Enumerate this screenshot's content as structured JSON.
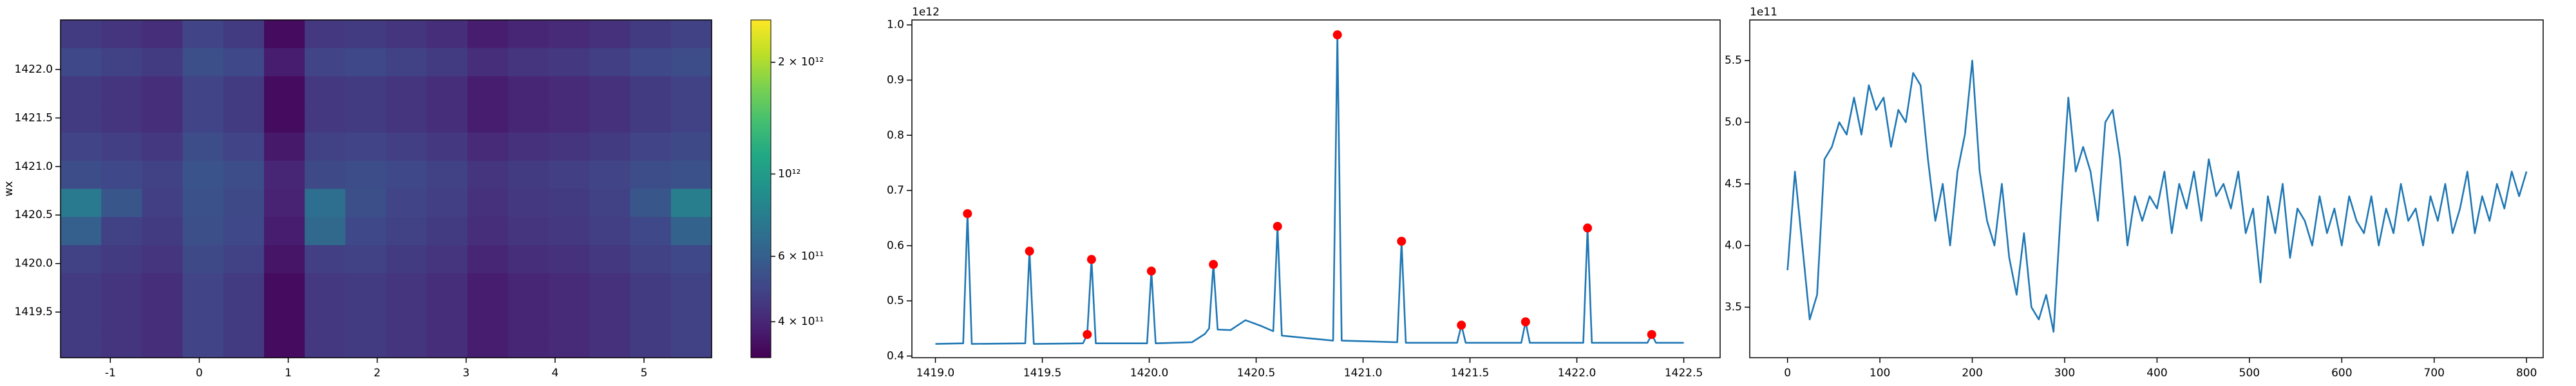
{
  "chart_data": [
    {
      "type": "heatmap",
      "ylabel": "wx",
      "xlim": [
        -1.56,
        5.76
      ],
      "ylim": [
        1419.03,
        1422.51
      ],
      "xticks": [
        -1,
        0,
        1,
        2,
        3,
        4,
        5
      ],
      "yticks": [
        1419.5,
        {
          "value": 1420,
          "label": "1420.0"
        },
        1420.5,
        {
          "value": 1421,
          "label": "1421.0"
        },
        1421.5,
        {
          "value": 1422,
          "label": "1422.0"
        }
      ],
      "colormap": "viridis",
      "clog": true,
      "clim": [
        320000000000.0,
        2600000000000.0
      ],
      "cticks": [
        {
          "value": 2000000000000.0,
          "label": "2 × 10¹²"
        },
        {
          "value": 1000000000000.0,
          "label": "10¹²"
        },
        {
          "value": 600000000000.0,
          "label": "6 × 10¹¹"
        },
        {
          "value": 400000000000.0,
          "label": "4 × 10¹¹"
        }
      ],
      "z": [
        [
          460000000000.0,
          440000000000.0,
          420000000000.0,
          490000000000.0,
          460000000000.0,
          340000000000.0,
          450000000000.0,
          460000000000.0,
          440000000000.0,
          420000000000.0,
          380000000000.0,
          400000000000.0,
          410000000000.0,
          430000000000.0,
          460000000000.0,
          480000000000.0
        ],
        [
          500000000000.0,
          480000000000.0,
          460000000000.0,
          530000000000.0,
          500000000000.0,
          380000000000.0,
          490000000000.0,
          500000000000.0,
          480000000000.0,
          460000000000.0,
          420000000000.0,
          440000000000.0,
          450000000000.0,
          470000000000.0,
          500000000000.0,
          520000000000.0
        ],
        [
          460000000000.0,
          440000000000.0,
          420000000000.0,
          490000000000.0,
          460000000000.0,
          340000000000.0,
          450000000000.0,
          460000000000.0,
          440000000000.0,
          420000000000.0,
          380000000000.0,
          400000000000.0,
          410000000000.0,
          430000000000.0,
          460000000000.0,
          480000000000.0
        ],
        [
          460000000000.0,
          440000000000.0,
          420000000000.0,
          490000000000.0,
          460000000000.0,
          340000000000.0,
          450000000000.0,
          460000000000.0,
          440000000000.0,
          420000000000.0,
          380000000000.0,
          400000000000.0,
          410000000000.0,
          430000000000.0,
          460000000000.0,
          480000000000.0
        ],
        [
          490000000000.0,
          470000000000.0,
          450000000000.0,
          520000000000.0,
          490000000000.0,
          370000000000.0,
          480000000000.0,
          490000000000.0,
          470000000000.0,
          450000000000.0,
          410000000000.0,
          430000000000.0,
          440000000000.0,
          460000000000.0,
          490000000000.0,
          510000000000.0
        ],
        [
          520000000000.0,
          500000000000.0,
          480000000000.0,
          550000000000.0,
          520000000000.0,
          400000000000.0,
          510000000000.0,
          520000000000.0,
          500000000000.0,
          480000000000.0,
          440000000000.0,
          460000000000.0,
          470000000000.0,
          490000000000.0,
          520000000000.0,
          540000000000.0
        ],
        [
          750000000000.0,
          560000000000.0,
          470000000000.0,
          540000000000.0,
          510000000000.0,
          390000000000.0,
          680000000000.0,
          530000000000.0,
          490000000000.0,
          470000000000.0,
          430000000000.0,
          450000000000.0,
          460000000000.0,
          480000000000.0,
          560000000000.0,
          780000000000.0
        ],
        [
          600000000000.0,
          480000000000.0,
          460000000000.0,
          530000000000.0,
          500000000000.0,
          380000000000.0,
          650000000000.0,
          500000000000.0,
          480000000000.0,
          460000000000.0,
          420000000000.0,
          440000000000.0,
          450000000000.0,
          470000000000.0,
          500000000000.0,
          620000000000.0
        ],
        [
          480000000000.0,
          460000000000.0,
          440000000000.0,
          510000000000.0,
          480000000000.0,
          360000000000.0,
          470000000000.0,
          480000000000.0,
          460000000000.0,
          440000000000.0,
          400000000000.0,
          420000000000.0,
          430000000000.0,
          450000000000.0,
          480000000000.0,
          500000000000.0
        ],
        [
          460000000000.0,
          440000000000.0,
          420000000000.0,
          490000000000.0,
          460000000000.0,
          340000000000.0,
          450000000000.0,
          460000000000.0,
          440000000000.0,
          420000000000.0,
          380000000000.0,
          400000000000.0,
          410000000000.0,
          430000000000.0,
          460000000000.0,
          480000000000.0
        ],
        [
          460000000000.0,
          440000000000.0,
          420000000000.0,
          490000000000.0,
          460000000000.0,
          340000000000.0,
          450000000000.0,
          460000000000.0,
          440000000000.0,
          420000000000.0,
          380000000000.0,
          400000000000.0,
          410000000000.0,
          430000000000.0,
          460000000000.0,
          480000000000.0
        ],
        [
          460000000000.0,
          440000000000.0,
          420000000000.0,
          490000000000.0,
          460000000000.0,
          340000000000.0,
          450000000000.0,
          460000000000.0,
          440000000000.0,
          420000000000.0,
          380000000000.0,
          400000000000.0,
          410000000000.0,
          430000000000.0,
          460000000000.0,
          480000000000.0
        ]
      ]
    },
    {
      "type": "line",
      "y_offset_label": "1e12",
      "xlim": [
        1418.89,
        1422.67
      ],
      "ylim": [
        0.397,
        1.009
      ],
      "xticks": [
        {
          "value": 1419,
          "label": "1419.0"
        },
        1419.5,
        {
          "value": 1420,
          "label": "1420.0"
        },
        1420.5,
        {
          "value": 1421,
          "label": "1421.0"
        },
        1421.5,
        {
          "value": 1422,
          "label": "1422.0"
        },
        1422.5
      ],
      "yticks": [
        0.4,
        0.5,
        0.6,
        0.7,
        0.8,
        0.9,
        {
          "value": 1.0,
          "label": "1.0"
        }
      ],
      "series": [
        {
          "type": "line",
          "color": "#1f77b4",
          "x": [
            1419.0,
            1419.13,
            1419.15,
            1419.17,
            1419.42,
            1419.44,
            1419.46,
            1419.69,
            1419.71,
            1419.73,
            1419.75,
            1419.99,
            1420.01,
            1420.03,
            1420.2,
            1420.26,
            1420.28,
            1420.3,
            1420.32,
            1420.38,
            1420.45,
            1420.52,
            1420.58,
            1420.6,
            1420.62,
            1420.75,
            1420.86,
            1420.88,
            1420.9,
            1421.16,
            1421.18,
            1421.2,
            1421.44,
            1421.46,
            1421.48,
            1421.74,
            1421.76,
            1421.78,
            1422.03,
            1422.05,
            1422.07,
            1422.33,
            1422.35,
            1422.37,
            1422.5
          ],
          "values": [
            0.422,
            0.423,
            0.658,
            0.422,
            0.423,
            0.59,
            0.422,
            0.423,
            0.439,
            0.575,
            0.423,
            0.423,
            0.554,
            0.423,
            0.425,
            0.44,
            0.45,
            0.566,
            0.448,
            0.447,
            0.465,
            0.455,
            0.445,
            0.635,
            0.437,
            0.432,
            0.428,
            0.982,
            0.428,
            0.425,
            0.608,
            0.424,
            0.424,
            0.456,
            0.424,
            0.424,
            0.462,
            0.424,
            0.424,
            0.632,
            0.424,
            0.424,
            0.439,
            0.424,
            0.424
          ]
        },
        {
          "type": "scatter",
          "color": "#ff0000",
          "x": [
            1419.15,
            1419.44,
            1419.71,
            1419.73,
            1420.01,
            1420.3,
            1420.6,
            1420.88,
            1421.18,
            1421.46,
            1421.76,
            1422.05,
            1422.35
          ],
          "values": [
            0.658,
            0.59,
            0.439,
            0.575,
            0.554,
            0.566,
            0.635,
            0.982,
            0.608,
            0.456,
            0.462,
            0.632,
            0.439
          ]
        }
      ]
    },
    {
      "type": "line",
      "y_offset_label": "1e11",
      "xlim": [
        -40.9,
        818
      ],
      "ylim": [
        3.09,
        5.83
      ],
      "xticks": [
        0,
        100,
        200,
        300,
        400,
        500,
        600,
        700,
        800
      ],
      "yticks": [
        3.5,
        {
          "value": 4,
          "label": "4.0"
        },
        4.5,
        {
          "value": 5,
          "label": "5.0"
        },
        5.5
      ],
      "series": [
        {
          "type": "line",
          "color": "#1f77b4",
          "x": [
            0,
            8,
            16,
            24,
            32,
            40,
            48,
            56,
            64,
            72,
            80,
            88,
            96,
            104,
            112,
            120,
            128,
            136,
            144,
            152,
            160,
            168,
            176,
            184,
            192,
            200,
            208,
            216,
            224,
            232,
            240,
            248,
            256,
            264,
            272,
            280,
            288,
            296,
            304,
            312,
            320,
            328,
            336,
            344,
            352,
            360,
            368,
            376,
            384,
            392,
            400,
            408,
            416,
            424,
            432,
            440,
            448,
            456,
            464,
            472,
            480,
            488,
            496,
            504,
            512,
            520,
            528,
            536,
            544,
            552,
            560,
            568,
            576,
            584,
            592,
            600,
            608,
            616,
            624,
            632,
            640,
            648,
            656,
            664,
            672,
            680,
            688,
            696,
            704,
            712,
            720,
            728,
            736,
            744,
            752,
            760,
            768,
            776,
            784,
            792,
            800
          ],
          "values": [
            3.8,
            4.6,
            4.0,
            3.4,
            3.6,
            4.7,
            4.8,
            5.0,
            4.9,
            5.2,
            4.9,
            5.3,
            5.1,
            5.2,
            4.8,
            5.1,
            5.0,
            5.4,
            5.3,
            4.7,
            4.2,
            4.5,
            4.0,
            4.6,
            4.9,
            5.5,
            4.6,
            4.2,
            4.0,
            4.5,
            3.9,
            3.6,
            4.1,
            3.5,
            3.4,
            3.6,
            3.3,
            4.3,
            5.2,
            4.6,
            4.8,
            4.6,
            4.2,
            5.0,
            5.1,
            4.7,
            4.0,
            4.4,
            4.2,
            4.4,
            4.3,
            4.6,
            4.1,
            4.5,
            4.3,
            4.6,
            4.2,
            4.7,
            4.4,
            4.5,
            4.3,
            4.6,
            4.1,
            4.3,
            3.7,
            4.4,
            4.1,
            4.5,
            3.9,
            4.3,
            4.2,
            4.0,
            4.4,
            4.1,
            4.3,
            4.0,
            4.4,
            4.2,
            4.1,
            4.4,
            4.0,
            4.3,
            4.1,
            4.5,
            4.2,
            4.3,
            4.0,
            4.4,
            4.2,
            4.5,
            4.1,
            4.3,
            4.6,
            4.1,
            4.4,
            4.2,
            4.5,
            4.3,
            4.6,
            4.4,
            4.6
          ]
        }
      ]
    }
  ]
}
